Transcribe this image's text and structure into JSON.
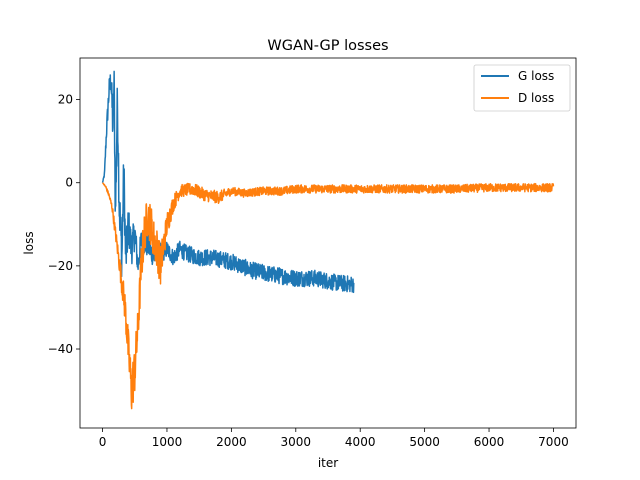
{
  "chart_data": {
    "type": "line",
    "title": "WGAN-GP losses",
    "xlabel": "iter",
    "ylabel": "loss",
    "xlim": [
      -350,
      7350
    ],
    "ylim": [
      -59,
      30
    ],
    "xticks": [
      0,
      1000,
      2000,
      3000,
      4000,
      5000,
      6000,
      7000
    ],
    "yticks": [
      -40,
      -20,
      0,
      20
    ],
    "xtick_labels": [
      "0",
      "1000",
      "2000",
      "3000",
      "4000",
      "5000",
      "6000",
      "7000"
    ],
    "ytick_labels": [
      "−40",
      "−20",
      "0",
      "20"
    ],
    "grid": false,
    "legend": "top-right",
    "series": [
      {
        "name": "G loss",
        "color": "#1f77b4",
        "x": [
          0,
          30,
          60,
          100,
          130,
          160,
          180,
          200,
          230,
          260,
          300,
          330,
          360,
          400,
          450,
          500,
          550,
          600,
          700,
          800,
          900,
          1000,
          1100,
          1200,
          1300,
          1500,
          1700,
          2000,
          2300,
          2600,
          3000,
          3300,
          3600,
          3900
        ],
        "y": [
          0,
          2,
          12,
          22,
          25,
          14,
          24,
          -8,
          20,
          -5,
          -18,
          3,
          -19,
          -10,
          -16,
          -12,
          -20,
          -14,
          -15,
          -18,
          -17,
          -16,
          -18,
          -16,
          -17,
          -18,
          -18,
          -19,
          -21,
          -22,
          -23,
          -23,
          -24,
          -24.5
        ],
        "noise": [
          0,
          0.5,
          2,
          3,
          3,
          6,
          4,
          7,
          5,
          7,
          6,
          6,
          5,
          5,
          4,
          4,
          3,
          3,
          3,
          2.5,
          2.5,
          2,
          2,
          2,
          2,
          2,
          2,
          2,
          2,
          2,
          2,
          2,
          2,
          2
        ]
      },
      {
        "name": "D loss",
        "color": "#ff7f0e",
        "x": [
          0,
          50,
          100,
          150,
          200,
          250,
          300,
          350,
          400,
          450,
          500,
          550,
          600,
          650,
          700,
          750,
          800,
          850,
          900,
          950,
          1000,
          1100,
          1200,
          1400,
          1600,
          1800,
          2000,
          2200,
          2500,
          2800,
          3000,
          3500,
          4000,
          4500,
          5000,
          5500,
          6000,
          6500,
          7000
        ],
        "y": [
          0,
          -1,
          -3,
          -6,
          -12,
          -18,
          -24,
          -30,
          -40,
          -50,
          -45,
          -35,
          -20,
          -12,
          -8,
          -10,
          -14,
          -16,
          -20,
          -15,
          -10,
          -5,
          -2,
          -1.5,
          -3,
          -3.5,
          -2,
          -2.5,
          -2,
          -2,
          -1.5,
          -1.5,
          -1.5,
          -1.5,
          -1.5,
          -1.5,
          -1.2,
          -1.2,
          -1.2
        ],
        "noise": [
          0,
          0.3,
          0.5,
          1,
          1.5,
          2,
          3,
          4,
          5,
          6,
          6,
          5,
          5,
          5,
          5,
          5,
          5,
          5,
          5,
          4,
          3,
          2,
          1.5,
          1.5,
          1.5,
          1.5,
          1,
          1,
          1,
          1,
          1,
          1,
          1,
          1,
          1,
          1,
          1,
          1,
          1
        ]
      }
    ]
  }
}
